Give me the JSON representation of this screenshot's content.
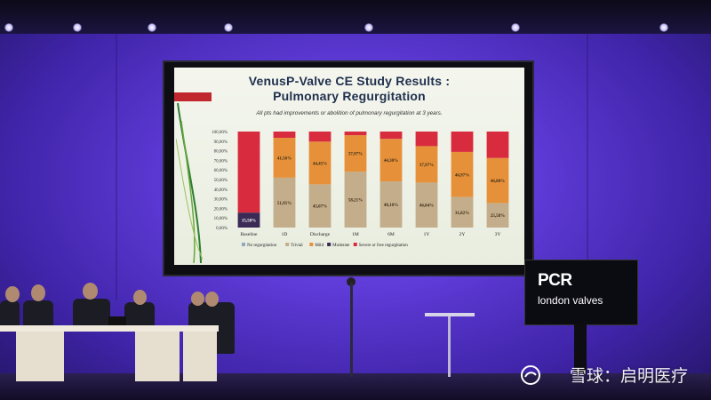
{
  "slide": {
    "title_line1": "VenusP-Valve CE Study Results :",
    "title_line2": "Pulmonary Regurgitation",
    "subtitle": "All pts had improvements or abolition of pulmonary regurgitation at 3 years."
  },
  "brand": {
    "logo": "PCR",
    "subtitle": "london valves"
  },
  "watermark": "雪球：启明医疗",
  "colors": {
    "no_regurgitation": "#8ea9c2",
    "trivial": "#c3ad8a",
    "mild": "#e6913a",
    "moderate": "#3b2a55",
    "severe": "#d92b3e"
  },
  "chart_data": {
    "type": "bar",
    "stacked": true,
    "percent": true,
    "categories": [
      "Baseline",
      "1D",
      "Discharge",
      "1M",
      "6M",
      "1Y",
      "2Y",
      "3Y"
    ],
    "yticks": [
      "0,00%",
      "10,00%",
      "20,00%",
      "30,00%",
      "40,00%",
      "50,00%",
      "60,00%",
      "70,00%",
      "80,00%",
      "90,00%",
      "100,00%"
    ],
    "ylim": [
      0,
      100
    ],
    "series": [
      {
        "name": "No regurgitation",
        "values": [
          0,
          0,
          0,
          0,
          0,
          0,
          0,
          0
        ]
      },
      {
        "name": "Trivial",
        "values": [
          0,
          51.95,
          45.07,
          58.21,
          48.1,
          46.84,
          31.82,
          25.58
        ]
      },
      {
        "name": "Mild",
        "values": [
          0,
          41.56,
          44.45,
          37.97,
          44.3,
          37.97,
          46.97,
          46.88
        ]
      },
      {
        "name": "Moderate",
        "values": [
          15.58,
          0,
          0,
          0,
          0,
          0,
          0,
          0
        ]
      },
      {
        "name": "Severe or free regurgitation",
        "values": [
          84.42,
          6.49,
          10.48,
          3.82,
          7.6,
          15.19,
          21.21,
          27.54
        ]
      }
    ],
    "data_labels": {
      "Baseline": {
        "Moderate": "15,58%"
      },
      "1D": {
        "Trivial": "51,95%",
        "Mild": "41,56%"
      },
      "Discharge": {
        "Trivial": "45,07%",
        "Mild": "44,45%"
      },
      "1M": {
        "Trivial": "58,21%",
        "Mild": "37,97%"
      },
      "6M": {
        "Trivial": "48,10%",
        "Mild": "44,30%"
      },
      "1Y": {
        "Trivial": "46,84%",
        "Mild": "37,97%"
      },
      "2Y": {
        "Trivial": "31,82%",
        "Mild": "46,97%"
      },
      "3Y": {
        "Trivial": "25,58%",
        "Mild": "46,88%"
      }
    },
    "legend_position": "bottom"
  }
}
